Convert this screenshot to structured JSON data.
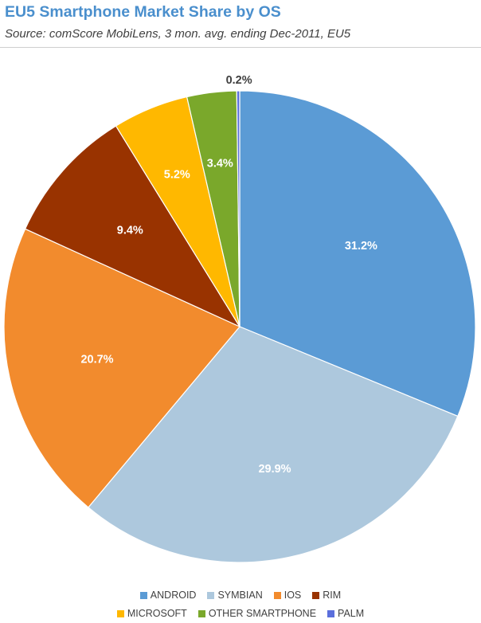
{
  "header": {
    "title": "EU5 Smartphone Market Share by OS",
    "subtitle": "Source: comScore MobiLens, 3 mon. avg. ending Dec-2011, EU5"
  },
  "chart_data": {
    "type": "pie",
    "title": "EU5 Smartphone Market Share by OS",
    "subtitle": "Source: comScore MobiLens, 3 mon. avg. ending Dec-2011, EU5",
    "start_angle_deg": 0,
    "direction": "clockwise",
    "legend_position": "bottom",
    "slices": [
      {
        "label": "ANDROID",
        "value": 31.2,
        "display": "31.2%",
        "color": "#5b9bd5"
      },
      {
        "label": "SYMBIAN",
        "value": 29.9,
        "display": "29.9%",
        "color": "#adc8dd"
      },
      {
        "label": "IOS",
        "value": 20.7,
        "display": "20.7%",
        "color": "#f28b2d"
      },
      {
        "label": "RIM",
        "value": 9.4,
        "display": "9.4%",
        "color": "#993300"
      },
      {
        "label": "MICROSOFT",
        "value": 5.2,
        "display": "5.2%",
        "color": "#ffb800"
      },
      {
        "label": "OTHER SMARTPHONE",
        "value": 3.4,
        "display": "3.4%",
        "color": "#7aa82b"
      },
      {
        "label": "PALM",
        "value": 0.2,
        "display": "0.2%",
        "color": "#5b6fdc"
      }
    ]
  }
}
